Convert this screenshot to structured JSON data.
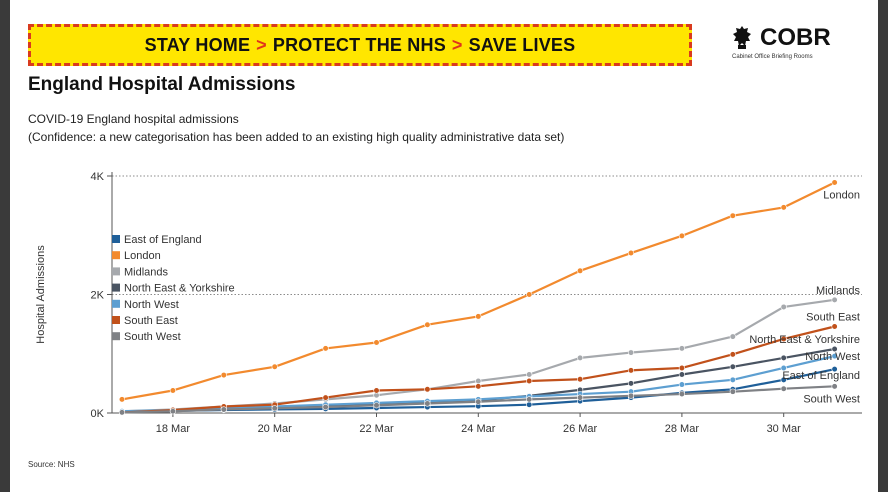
{
  "banner": {
    "part1": "STAY HOME",
    "part2": "PROTECT THE NHS",
    "part3": "SAVE LIVES",
    "chevron": ">",
    "accent_color": "#e0341b",
    "background_color": "#ffe600"
  },
  "logo": {
    "name": "COBR",
    "subtitle": "Cabinet Office Briefing Rooms",
    "icon": "crest-icon"
  },
  "page_title": "England Hospital Admissions",
  "subtitle_line1": "COVID-19 England hospital admissions",
  "subtitle_line2": "(Confidence: a new categorisation has been added to an existing high quality administrative data set)",
  "source": "Source: NHS",
  "chart_data": {
    "type": "line",
    "title": "",
    "xlabel": "",
    "ylabel": "Hospital Admissions",
    "x": [
      "17 Mar",
      "18 Mar",
      "19 Mar",
      "20 Mar",
      "21 Mar",
      "22 Mar",
      "23 Mar",
      "24 Mar",
      "25 Mar",
      "26 Mar",
      "27 Mar",
      "28 Mar",
      "29 Mar",
      "30 Mar",
      "31 Mar"
    ],
    "x_tick_labels": [
      "18 Mar",
      "20 Mar",
      "22 Mar",
      "24 Mar",
      "26 Mar",
      "28 Mar",
      "30 Mar"
    ],
    "ylim": [
      0,
      4000
    ],
    "y_ticks": [
      0,
      2000,
      4000
    ],
    "y_tick_labels": [
      "0K",
      "2K",
      "4K"
    ],
    "grid": "horizontal dotted at 2K and 4K",
    "legend_placement": "top-left",
    "series": [
      {
        "name": "East of England",
        "color": "#1f5f99",
        "end_label": "East of England",
        "values": [
          20,
          35,
          50,
          60,
          70,
          85,
          100,
          115,
          140,
          200,
          260,
          340,
          400,
          560,
          740
        ]
      },
      {
        "name": "London",
        "color": "#f28a2e",
        "end_label": "London",
        "values": [
          230,
          380,
          640,
          780,
          1090,
          1190,
          1490,
          1630,
          2000,
          2400,
          2700,
          2990,
          3330,
          3470,
          3890
        ]
      },
      {
        "name": "Midlands",
        "color": "#a6a9ad",
        "end_label": "Midlands",
        "values": [
          30,
          60,
          110,
          160,
          230,
          300,
          400,
          540,
          650,
          930,
          1020,
          1090,
          1290,
          1790,
          1910
        ]
      },
      {
        "name": "North East & Yorkshire",
        "color": "#4a5462",
        "end_label": "North East & Yorkshire",
        "values": [
          20,
          40,
          70,
          100,
          130,
          160,
          190,
          210,
          290,
          390,
          500,
          650,
          780,
          930,
          1080
        ]
      },
      {
        "name": "North West",
        "color": "#5d9fd1",
        "end_label": "North West",
        "values": [
          30,
          50,
          80,
          110,
          140,
          170,
          200,
          230,
          280,
          320,
          360,
          480,
          560,
          760,
          960
        ]
      },
      {
        "name": "South East",
        "color": "#c1511b",
        "end_label": "South East",
        "values": [
          10,
          50,
          110,
          140,
          260,
          380,
          400,
          450,
          540,
          570,
          720,
          760,
          990,
          1250,
          1460
        ]
      },
      {
        "name": "South West",
        "color": "#7f8185",
        "end_label": "South West",
        "values": [
          10,
          30,
          60,
          80,
          100,
          130,
          160,
          190,
          230,
          260,
          290,
          320,
          360,
          410,
          450
        ]
      }
    ]
  }
}
